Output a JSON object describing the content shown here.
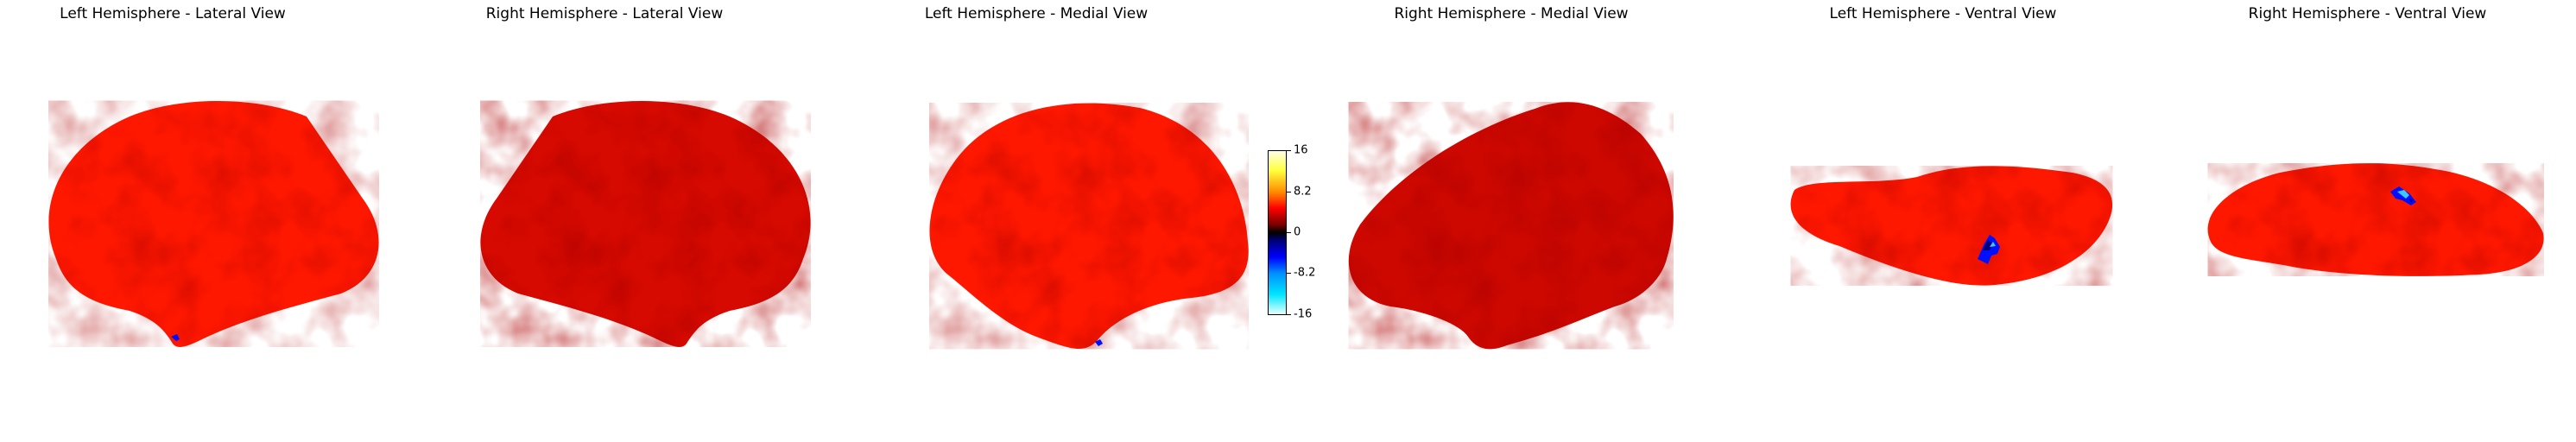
{
  "panels": [
    {
      "title": "Left Hemisphere - Lateral View"
    },
    {
      "title": "Right Hemisphere - Lateral View"
    },
    {
      "title": "Left Hemisphere - Medial View"
    },
    {
      "title": "Right Hemisphere - Medial View"
    },
    {
      "title": "Left Hemisphere - Ventral View"
    },
    {
      "title": "Right Hemisphere - Ventral View"
    }
  ],
  "colorbar": {
    "ticks": [
      "16",
      "8.2",
      "0",
      "-8.2",
      "-16"
    ],
    "range": [
      -16,
      16
    ]
  },
  "colors": {
    "positive": "#ff1500",
    "positive_dark": "#b00000",
    "negative": "#0015ff",
    "negative_light": "#3fc8ff"
  }
}
